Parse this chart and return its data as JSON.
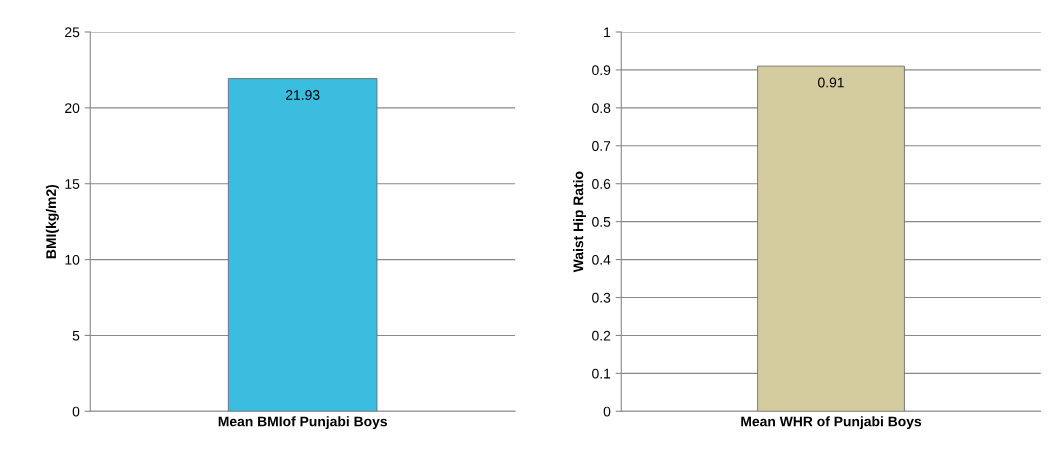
{
  "chart_data": [
    {
      "type": "bar",
      "categories": [
        "Mean BMIof Punjabi Boys"
      ],
      "values": [
        21.93
      ],
      "color": "#3bbde0",
      "ylabel": "BMI(kg/m2)",
      "ylim": [
        0,
        25
      ],
      "yticks": [
        0,
        5,
        10,
        15,
        20,
        25
      ],
      "grid": "y",
      "data_labels": true
    },
    {
      "type": "bar",
      "categories": [
        "Mean WHR of Punjabi Boys"
      ],
      "values": [
        0.91
      ],
      "color": "#d4cc9e",
      "ylabel": "Waist Hip Ratio",
      "ylim": [
        0,
        1
      ],
      "yticks": [
        0,
        0.1,
        0.2,
        0.3,
        0.4,
        0.5,
        0.6,
        0.7,
        0.8,
        0.9,
        1
      ],
      "grid": "y",
      "data_labels": true
    }
  ]
}
